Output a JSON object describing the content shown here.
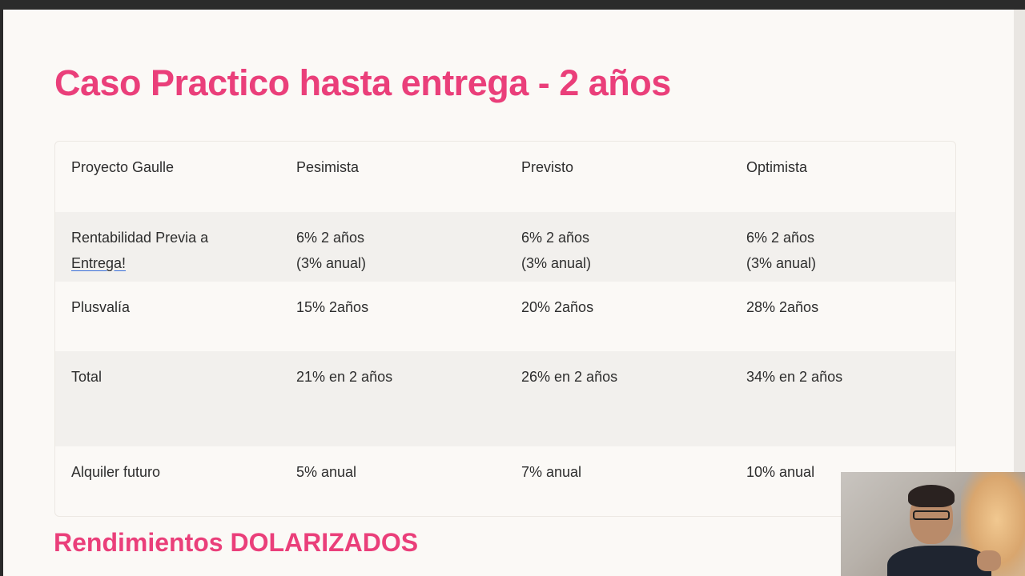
{
  "title": "Caso Practico hasta entrega - 2 años",
  "subtitle": "Rendimientos DOLARIZADOS",
  "table": {
    "headers": [
      "Proyecto Gaulle",
      "Pesimista",
      "Previsto",
      "Optimista"
    ],
    "rows": [
      {
        "label_line1": "Rentabilidad Previa a",
        "label_link": "Entrega!",
        "values": [
          [
            "6% 2 años",
            "(3% anual)"
          ],
          [
            "6% 2 años",
            "(3% anual)"
          ],
          [
            "6% 2 años",
            "(3% anual)"
          ]
        ]
      },
      {
        "label": "Plusvalía",
        "values": [
          "15% 2años",
          "20% 2años",
          "28% 2años"
        ]
      },
      {
        "label": "Total",
        "values": [
          "21% en 2 años",
          "26% en 2 años",
          "34% en 2 años"
        ]
      },
      {
        "label": "Alquiler futuro",
        "values": [
          "5% anual",
          "7% anual",
          "10% anual"
        ]
      }
    ]
  }
}
